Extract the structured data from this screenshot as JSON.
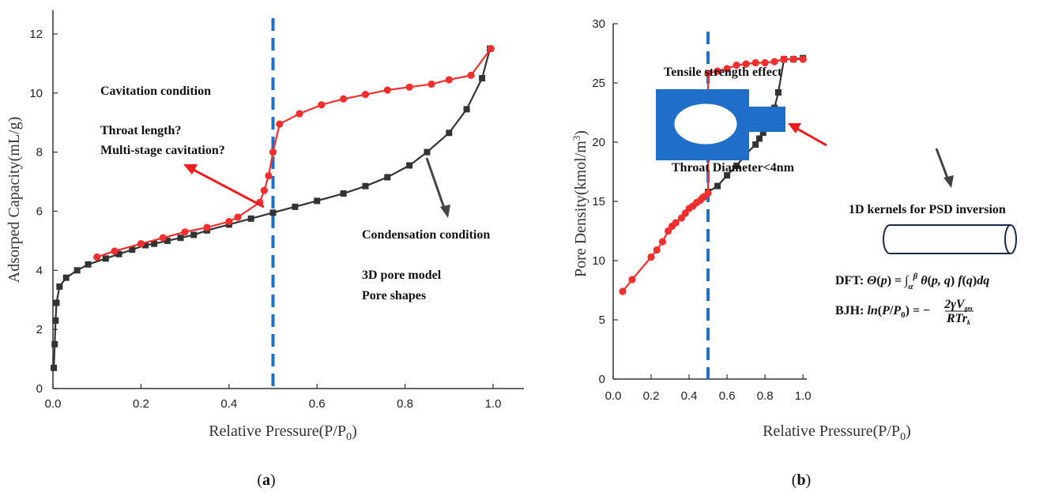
{
  "colors": {
    "adsorption": "#333333",
    "desorption": "#f22f2f",
    "divider": "#1f6fc8",
    "arrow_red": "#ee1c1c",
    "arrow_gray": "#444444",
    "shape": "#1f6fc8"
  },
  "chart_data": [
    {
      "id": "a",
      "type": "line",
      "panel_label": "(a)",
      "xlabel": "Relative Pressure(P/P0)",
      "ylabel": "Adsorped Capacity(mL/g)",
      "xlim": [
        0,
        1.07
      ],
      "ylim": [
        0,
        12.8
      ],
      "xticks": [
        "0.0",
        "0.2",
        "0.4",
        "0.6",
        "0.8",
        "1.0"
      ],
      "yticks": [
        "0",
        "2",
        "4",
        "6",
        "8",
        "10",
        "12"
      ],
      "divider_x": 0.5,
      "series": [
        {
          "marker": "square",
          "color": "#333333",
          "points": [
            [
              0.002,
              0.7
            ],
            [
              0.004,
              1.5
            ],
            [
              0.006,
              2.3
            ],
            [
              0.008,
              2.9
            ],
            [
              0.015,
              3.45
            ],
            [
              0.03,
              3.75
            ],
            [
              0.055,
              4.0
            ],
            [
              0.08,
              4.2
            ],
            [
              0.12,
              4.4
            ],
            [
              0.15,
              4.55
            ],
            [
              0.18,
              4.7
            ],
            [
              0.21,
              4.85
            ],
            [
              0.23,
              4.9
            ],
            [
              0.26,
              5.0
            ],
            [
              0.29,
              5.1
            ],
            [
              0.32,
              5.2
            ],
            [
              0.35,
              5.35
            ],
            [
              0.4,
              5.55
            ],
            [
              0.45,
              5.75
            ],
            [
              0.5,
              5.95
            ],
            [
              0.55,
              6.15
            ],
            [
              0.6,
              6.35
            ],
            [
              0.66,
              6.6
            ],
            [
              0.71,
              6.85
            ],
            [
              0.76,
              7.15
            ],
            [
              0.81,
              7.55
            ],
            [
              0.85,
              8.0
            ],
            [
              0.9,
              8.65
            ],
            [
              0.94,
              9.45
            ],
            [
              0.975,
              10.5
            ],
            [
              0.993,
              11.5
            ]
          ]
        },
        {
          "marker": "circle",
          "color": "#f22f2f",
          "points": [
            [
              0.1,
              4.45
            ],
            [
              0.14,
              4.65
            ],
            [
              0.2,
              4.9
            ],
            [
              0.25,
              5.1
            ],
            [
              0.3,
              5.3
            ],
            [
              0.35,
              5.45
            ],
            [
              0.4,
              5.65
            ],
            [
              0.42,
              5.8
            ],
            [
              0.47,
              6.3
            ],
            [
              0.48,
              6.7
            ],
            [
              0.49,
              7.2
            ],
            [
              0.5,
              8.0
            ],
            [
              0.515,
              8.95
            ],
            [
              0.56,
              9.3
            ],
            [
              0.61,
              9.6
            ],
            [
              0.66,
              9.8
            ],
            [
              0.71,
              9.95
            ],
            [
              0.76,
              10.1
            ],
            [
              0.81,
              10.2
            ],
            [
              0.86,
              10.3
            ],
            [
              0.9,
              10.45
            ],
            [
              0.95,
              10.6
            ],
            [
              0.995,
              11.5
            ]
          ]
        }
      ],
      "annotations": {
        "cavitation": "Cavitation condition",
        "throat_length": "Throat length?",
        "multistage": "Multi-stage cavitation?",
        "condensation": "Condensation condition",
        "pore_model": "3D pore model",
        "pore_shapes": "Pore shapes"
      }
    },
    {
      "id": "b",
      "type": "line",
      "panel_label": "(b)",
      "xlabel": "Relative Pressure(P/P0)",
      "ylabel": "Pore Density(kmol/m3)",
      "xlim": [
        0,
        1.02
      ],
      "ylim": [
        0,
        30
      ],
      "xticks": [
        "0.0",
        "0.2",
        "0.4",
        "0.6",
        "0.8",
        "1.0"
      ],
      "yticks": [
        "0",
        "5",
        "10",
        "15",
        "20",
        "25",
        "30"
      ],
      "divider_x": 0.5,
      "series": [
        {
          "marker": "square",
          "color": "#333333",
          "points": [
            [
              0.5,
              15.8
            ],
            [
              0.55,
              16.3
            ],
            [
              0.6,
              17.2
            ],
            [
              0.65,
              18.0
            ],
            [
              0.7,
              19.0
            ],
            [
              0.75,
              19.8
            ],
            [
              0.77,
              20.3
            ],
            [
              0.79,
              20.8
            ],
            [
              0.81,
              21.4
            ],
            [
              0.83,
              22.0
            ],
            [
              0.85,
              22.9
            ],
            [
              0.87,
              24.2
            ],
            [
              0.9,
              27.0
            ],
            [
              0.95,
              27.0
            ],
            [
              1.0,
              27.1
            ]
          ]
        },
        {
          "marker": "circle",
          "color": "#f22f2f",
          "points": [
            [
              0.05,
              7.4
            ],
            [
              0.1,
              8.4
            ],
            [
              0.2,
              10.3
            ],
            [
              0.23,
              10.9
            ],
            [
              0.26,
              11.6
            ],
            [
              0.29,
              12.5
            ],
            [
              0.31,
              12.9
            ],
            [
              0.33,
              13.2
            ],
            [
              0.36,
              13.6
            ],
            [
              0.38,
              14.0
            ],
            [
              0.4,
              14.4
            ],
            [
              0.42,
              14.6
            ],
            [
              0.44,
              14.9
            ],
            [
              0.46,
              15.1
            ],
            [
              0.47,
              15.3
            ],
            [
              0.48,
              15.4
            ],
            [
              0.5,
              15.7
            ],
            [
              0.5,
              25.8
            ],
            [
              0.55,
              26.0
            ],
            [
              0.6,
              26.2
            ],
            [
              0.65,
              26.5
            ],
            [
              0.7,
              26.6
            ],
            [
              0.75,
              26.7
            ],
            [
              0.8,
              26.7
            ],
            [
              0.85,
              26.8
            ],
            [
              0.9,
              27.0
            ],
            [
              0.95,
              27.0
            ],
            [
              1.0,
              27.0
            ]
          ]
        }
      ],
      "annotations": {
        "tensile": "Tensile strength effect",
        "throat_diameter": "Throat Diameter<4nm",
        "kernels": "1D kernels for PSD inversion",
        "dft": "DFT: Θ(p) = ∫αβ θ(p, q) f(q) dq",
        "bjh": "BJH: ln(P/P0) = − 2γVgm / RTrk"
      }
    }
  ]
}
